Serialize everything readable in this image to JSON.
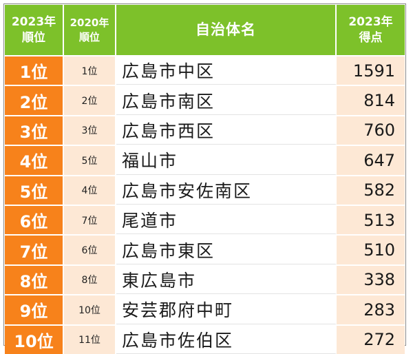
{
  "header": {
    "rank_2023_line1": "2023年",
    "rank_2023_line2": "順位",
    "rank_2020_line1": "2020年",
    "rank_2020_line2": "順位",
    "name": "自治体名",
    "score_line1": "2023年",
    "score_line2": "得点"
  },
  "colors": {
    "header_green": "#7dc12a",
    "rank_orange": "#f7821b",
    "light_peach": "#fde8d5"
  },
  "rows": [
    {
      "rank_2023": "1位",
      "rank_2020": "1位",
      "name": "広島市中区",
      "score": "1591"
    },
    {
      "rank_2023": "2位",
      "rank_2020": "2位",
      "name": "広島市南区",
      "score": "814"
    },
    {
      "rank_2023": "3位",
      "rank_2020": "3位",
      "name": "広島市西区",
      "score": "760"
    },
    {
      "rank_2023": "4位",
      "rank_2020": "5位",
      "name": "福山市",
      "score": "647"
    },
    {
      "rank_2023": "5位",
      "rank_2020": "4位",
      "name": "広島市安佐南区",
      "score": "582"
    },
    {
      "rank_2023": "6位",
      "rank_2020": "7位",
      "name": "尾道市",
      "score": "513"
    },
    {
      "rank_2023": "7位",
      "rank_2020": "6位",
      "name": "広島市東区",
      "score": "510"
    },
    {
      "rank_2023": "8位",
      "rank_2020": "8位",
      "name": "東広島市",
      "score": "338"
    },
    {
      "rank_2023": "9位",
      "rank_2020": "10位",
      "name": "安芸郡府中町",
      "score": "283"
    },
    {
      "rank_2023": "10位",
      "rank_2020": "11位",
      "name": "広島市佐伯区",
      "score": "272"
    }
  ]
}
